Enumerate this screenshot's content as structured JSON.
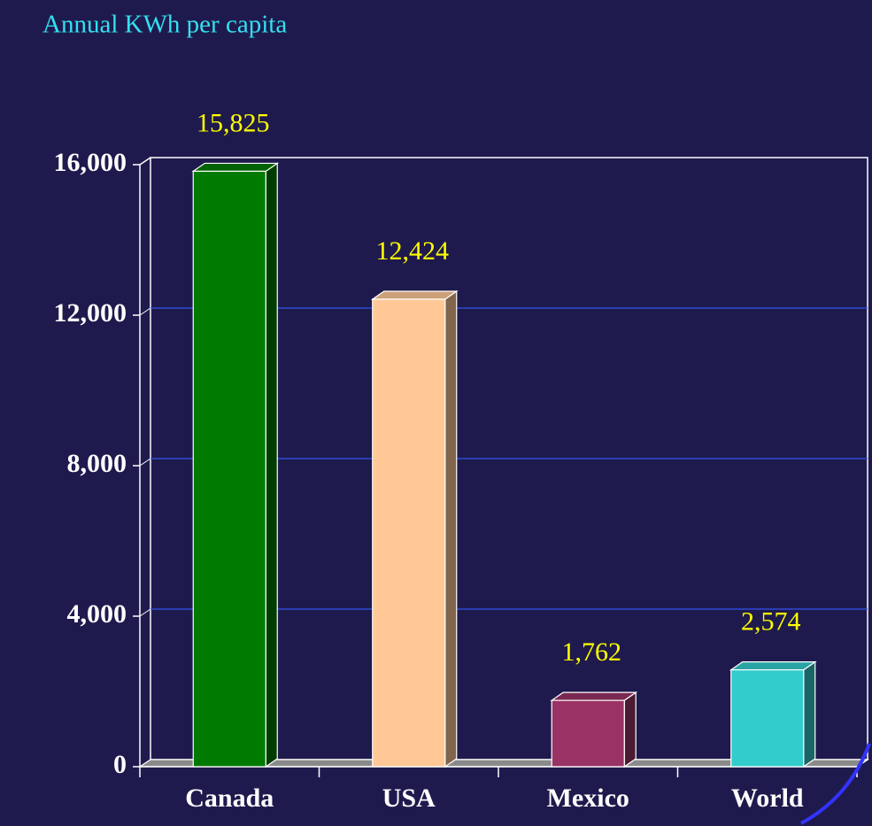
{
  "chart_data": {
    "type": "bar3d",
    "title": "Annual KWh per capita",
    "categories": [
      "Canada",
      "USA",
      "Mexico",
      "World"
    ],
    "values": [
      15825,
      12424,
      1762,
      2574
    ],
    "value_labels": [
      "15,825",
      "12,424",
      "1,762",
      "2,574"
    ],
    "colors": [
      "#007a00",
      "#ffc896",
      "#993366",
      "#33cccc"
    ],
    "ylim": [
      0,
      16000
    ],
    "yticks": [
      0,
      {
        "value": 4000,
        "label": "4,000"
      },
      {
        "value": 8000,
        "label": "8,000"
      },
      {
        "value": 12000,
        "label": "12,000"
      },
      {
        "value": 16000,
        "label": "16,000"
      }
    ],
    "grid": true
  }
}
